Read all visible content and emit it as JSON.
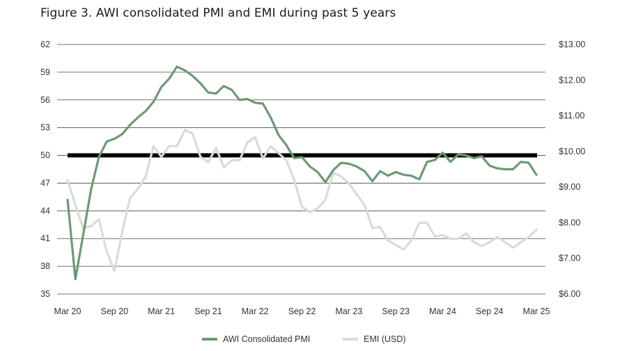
{
  "title": "Figure 3. AWI consolidated PMI and EMI during past 5 years",
  "colors": {
    "pmi": "#6b9a72",
    "emi": "#d8dbd8",
    "ref": "#000000",
    "grid": "#444444"
  },
  "chart_data": {
    "type": "line",
    "title": "Figure 3. AWI consolidated PMI and EMI during past 5 years",
    "x_tick_labels": [
      "Mar 20",
      "Sep 20",
      "Mar 21",
      "Sep 21",
      "Mar 22",
      "Sep 22",
      "Mar 23",
      "Sep 23",
      "Mar 24",
      "Sep 24",
      "Mar 25"
    ],
    "y_left": {
      "min": 35,
      "max": 62,
      "ticks": [
        35,
        38,
        41,
        44,
        47,
        50,
        53,
        56,
        59,
        62
      ]
    },
    "y_right": {
      "min": 6.0,
      "max": 13.0,
      "ticks": [
        "$6.00",
        "$7.00",
        "$8.00",
        "$9.00",
        "$10.00",
        "$11.00",
        "$12.00",
        "$13.00"
      ]
    },
    "grid": true,
    "legend_position": "bottom",
    "reference_line": {
      "axis": "left",
      "value": 50
    },
    "series": [
      {
        "name": "AWI Consolidated PMI",
        "axis": "left",
        "values": [
          45.2,
          36.6,
          41.4,
          46.3,
          49.8,
          51.5,
          51.8,
          52.3,
          53.3,
          54.1,
          54.8,
          55.8,
          57.4,
          58.3,
          59.6,
          59.2,
          58.6,
          57.8,
          56.8,
          56.7,
          57.5,
          57.1,
          56.0,
          56.1,
          55.7,
          55.6,
          54.1,
          52.2,
          51.1,
          49.7,
          49.8,
          48.8,
          48.2,
          47.1,
          48.4,
          49.2,
          49.1,
          48.8,
          48.3,
          47.2,
          48.3,
          47.8,
          48.2,
          47.9,
          47.8,
          47.4,
          49.3,
          49.5,
          50.3,
          49.3,
          50.1,
          50.0,
          49.7,
          49.9,
          48.9,
          48.6,
          48.5,
          48.5,
          49.3,
          49.2,
          47.9
        ]
      },
      {
        "name": "EMI (USD)",
        "axis": "right",
        "values": [
          9.2,
          8.5,
          7.85,
          7.9,
          8.1,
          7.2,
          6.65,
          7.75,
          8.7,
          8.95,
          9.3,
          10.15,
          9.85,
          10.15,
          10.15,
          10.6,
          10.5,
          9.85,
          9.7,
          10.1,
          9.55,
          9.75,
          9.75,
          10.25,
          10.4,
          9.8,
          10.15,
          9.95,
          9.75,
          9.2,
          8.45,
          8.3,
          8.4,
          8.65,
          9.4,
          9.3,
          9.1,
          8.8,
          8.5,
          7.85,
          7.88,
          7.5,
          7.38,
          7.25,
          7.5,
          8.0,
          8.0,
          7.62,
          7.65,
          7.55,
          7.55,
          7.7,
          7.45,
          7.35,
          7.45,
          7.6,
          7.45,
          7.3,
          7.45,
          7.6,
          7.8
        ]
      }
    ]
  }
}
